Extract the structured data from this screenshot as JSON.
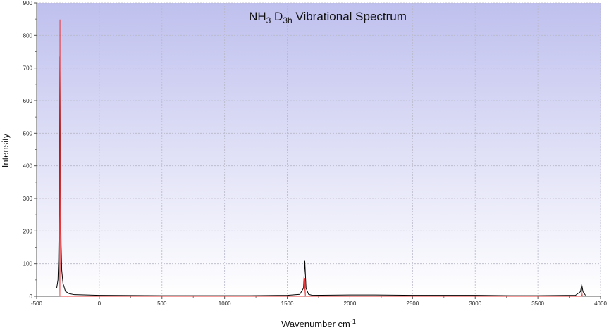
{
  "chart_data": {
    "type": "line",
    "title": {
      "main": "NH",
      "sub1": "3",
      "mid": " D",
      "sub2": "3h",
      "rest": " Vibrational Spectrum"
    },
    "xlabel": {
      "main": "Wavenumber cm",
      "sup": "-1"
    },
    "ylabel": "Intensity",
    "xlim": [
      -500,
      4000
    ],
    "ylim": [
      0,
      900
    ],
    "x_ticks": [
      -500,
      0,
      500,
      1000,
      1500,
      2000,
      2500,
      3000,
      3500,
      4000
    ],
    "y_ticks": [
      0,
      100,
      200,
      300,
      400,
      500,
      600,
      700,
      800,
      900
    ],
    "grid": true,
    "background_gradient": [
      "#bfc0ee",
      "#ffffff"
    ],
    "series": [
      {
        "color": "#000000",
        "points": [
          [
            -340,
            25
          ],
          [
            -330,
            50
          ],
          [
            -325,
            110
          ],
          [
            -320,
            250
          ],
          [
            -317,
            500
          ],
          [
            -315,
            735
          ],
          [
            -313,
            600
          ],
          [
            -310,
            380
          ],
          [
            -305,
            160
          ],
          [
            -300,
            80
          ],
          [
            -290,
            40
          ],
          [
            -270,
            15
          ],
          [
            -240,
            8
          ],
          [
            -200,
            5
          ],
          [
            0,
            3
          ],
          [
            500,
            2
          ],
          [
            1000,
            2
          ],
          [
            1200,
            2
          ],
          [
            1500,
            3
          ],
          [
            1600,
            6
          ],
          [
            1630,
            25
          ],
          [
            1640,
            108
          ],
          [
            1650,
            25
          ],
          [
            1670,
            6
          ],
          [
            1700,
            3
          ],
          [
            2000,
            4
          ],
          [
            2200,
            4
          ],
          [
            2500,
            3
          ],
          [
            3000,
            3
          ],
          [
            3270,
            2
          ],
          [
            3500,
            2
          ],
          [
            3800,
            3
          ],
          [
            3840,
            14
          ],
          [
            3850,
            36
          ],
          [
            3860,
            14
          ],
          [
            3880,
            3
          ]
        ]
      },
      {
        "color": "#e8373a",
        "points": [
          [
            -320,
            0
          ],
          [
            -316,
            250
          ],
          [
            -314,
            848
          ],
          [
            -312,
            250
          ],
          [
            -308,
            0
          ],
          [
            1635,
            0
          ],
          [
            1640,
            55
          ],
          [
            1645,
            0
          ],
          [
            3845,
            0
          ],
          [
            3850,
            18
          ],
          [
            3855,
            0
          ]
        ]
      }
    ]
  }
}
